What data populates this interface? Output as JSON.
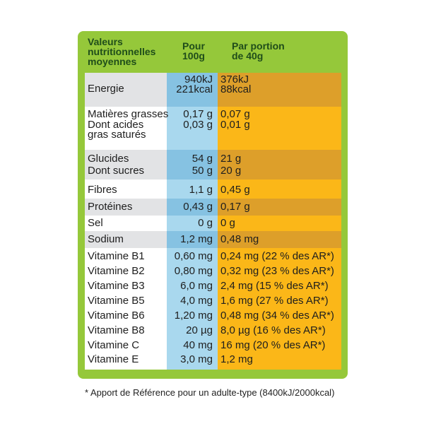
{
  "header": {
    "col1": [
      "Valeurs",
      "nutritionnelles",
      "moyennes"
    ],
    "col2": [
      "Pour",
      "100g"
    ],
    "col3": [
      "Par portion",
      "de 40g"
    ]
  },
  "rows": {
    "energie": {
      "label": "Energie",
      "per100": [
        "940kJ",
        "221kcal"
      ],
      "portion": [
        "376kJ",
        "88kcal"
      ]
    },
    "mg": {
      "label": "Matières grasses",
      "per100": "0,17 g",
      "portion": "0,07 g"
    },
    "acides": {
      "label": [
        "Dont acides",
        "gras saturés"
      ],
      "per100": "0,03 g",
      "portion": "0,01 g"
    },
    "glucides": {
      "label": "Glucides",
      "per100": "54 g",
      "portion": "21 g"
    },
    "sucres": {
      "label": "Dont sucres",
      "per100": "50 g",
      "portion": "20 g"
    },
    "fibres": {
      "label": "Fibres",
      "per100": "1,1 g",
      "portion": "0,45 g"
    },
    "proteines": {
      "label": "Protéines",
      "per100": "0,43 g",
      "portion": "0,17 g"
    },
    "sel": {
      "label": "Sel",
      "per100": "0 g",
      "portion": "0 g"
    },
    "sodium": {
      "label": "Sodium",
      "per100": "1,2 mg",
      "portion": "0,48 mg"
    },
    "vitamins": [
      {
        "label": "Vitamine B1",
        "per100": "0,60 mg",
        "portion": "0,24 mg (22 % des AR*)"
      },
      {
        "label": "Vitamine B2",
        "per100": "0,80 mg",
        "portion": "0,32 mg (23 % des AR*)"
      },
      {
        "label": "Vitamine B3",
        "per100": "6,0 mg",
        "portion": "2,4 mg (15 % des AR*)"
      },
      {
        "label": "Vitamine B5",
        "per100": "4,0 mg",
        "portion": "1,6 mg (27 % des AR*)"
      },
      {
        "label": "Vitamine B6",
        "per100": "1,20 mg",
        "portion": "0,48 mg (34 % des AR*)"
      },
      {
        "label": "Vitamine B8",
        "per100": "20 µg",
        "portion": "8,0 µg (16 % des AR*)"
      },
      {
        "label": "Vitamine C",
        "per100": "40 mg",
        "portion": "16 mg (20 % des AR*)"
      },
      {
        "label": "Vitamine E",
        "per100": "3,0 mg",
        "portion": "1,2 mg"
      }
    ]
  },
  "footnote": "* Apport de Référence pour un adulte-type (8400kJ/2000kcal)",
  "colors": {
    "frame_green": "#95c83a",
    "mid_blue": "#a9d8ee",
    "right_orange": "#fbb718",
    "band_blue": "#86c2e2",
    "band_orange": "#dd9f2a",
    "band_grey": "#e2e3e5"
  }
}
